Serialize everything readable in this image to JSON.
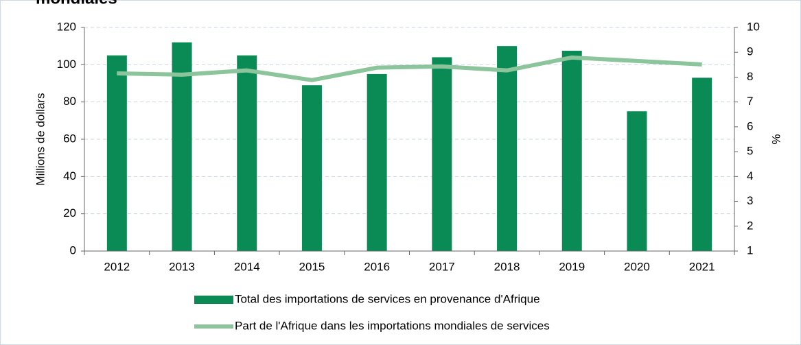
{
  "chart_data": {
    "type": "bar_line",
    "title": "mondiales",
    "categories": [
      "2012",
      "2013",
      "2014",
      "2015",
      "2016",
      "2017",
      "2018",
      "2019",
      "2020",
      "2021"
    ],
    "series": [
      {
        "name": "Total des importations de services en provenance d'Afrique",
        "type": "bar",
        "color": "#0a8a55",
        "values": [
          105,
          112,
          105,
          89,
          95,
          104,
          110,
          107.5,
          75,
          93
        ]
      },
      {
        "name": "Part de l'Afrique dans les importations mondiales de services",
        "type": "line",
        "axis": "y2",
        "color": "#8cc59c",
        "values": [
          8.15,
          8.1,
          8.27,
          7.88,
          8.38,
          8.43,
          8.27,
          8.79,
          8.65,
          8.51
        ]
      }
    ],
    "ylabel": "Millions de dollars",
    "y2label": "%",
    "ylim": [
      0,
      120
    ],
    "yticks": [
      0,
      20,
      40,
      60,
      80,
      100,
      120
    ],
    "y2lim": [
      1,
      10
    ],
    "y2ticks": [
      1,
      2,
      3,
      4,
      5,
      6,
      7,
      8,
      9,
      10
    ],
    "grid": true
  }
}
